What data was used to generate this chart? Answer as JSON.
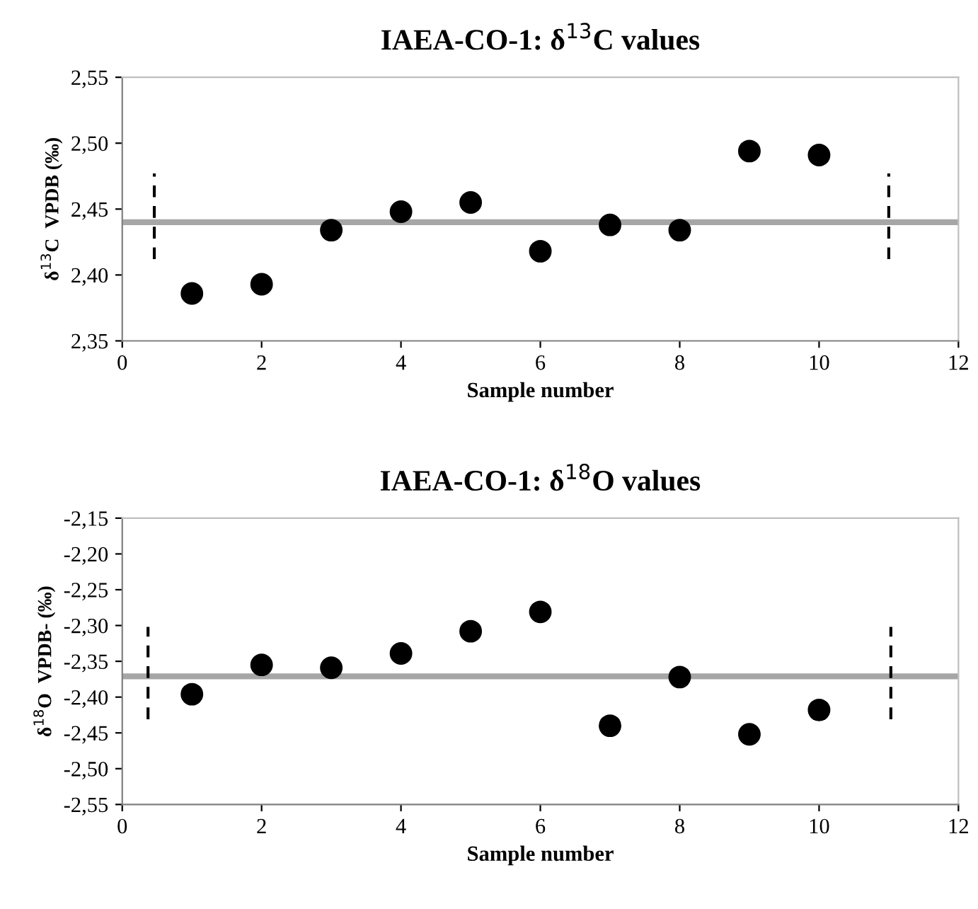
{
  "chart_data": [
    {
      "type": "scatter",
      "title": "IAEA-CO-1: δ$^{13}$C values",
      "xlabel": "Sample number",
      "ylabel": "δ$^{13}$C  VPDB (‰)",
      "marker": "circle",
      "legend": false,
      "grid": false,
      "xlim": [
        0,
        12
      ],
      "xticks": [
        0,
        2,
        4,
        6,
        8,
        10,
        12
      ],
      "ylim": [
        2.35,
        2.55
      ],
      "yticks": [
        {
          "value": 2.35,
          "label": "2,35"
        },
        {
          "value": 2.4,
          "label": "2,40"
        },
        {
          "value": 2.45,
          "label": "2,45"
        },
        {
          "value": 2.5,
          "label": "2,50"
        },
        {
          "value": 2.55,
          "label": "2,55"
        }
      ],
      "ref_lines": [
        {
          "axis": "y",
          "value": 2.44,
          "color": "#a6a6a6"
        }
      ],
      "series": [
        {
          "color": "#000000",
          "x": [
            1,
            2,
            3,
            4,
            5,
            6,
            7,
            8,
            9,
            10
          ],
          "values": [
            2.386,
            2.393,
            2.434,
            2.448,
            2.455,
            2.418,
            2.438,
            2.434,
            2.494,
            2.491
          ]
        },
        {
          "type": "line",
          "color": "#000000",
          "line_style": "dashed",
          "marker": "none",
          "x": [
            0.46,
            0.46
          ],
          "values": [
            2.412,
            2.477
          ]
        },
        {
          "type": "line",
          "color": "#000000",
          "line_style": "dashed",
          "marker": "none",
          "x": [
            11,
            11
          ],
          "values": [
            2.412,
            2.477
          ]
        }
      ]
    },
    {
      "type": "scatter",
      "title": "IAEA-CO-1: δ$^{18}$O values",
      "xlabel": "Sample number",
      "ylabel": "δ$^{18}$O  VPDB- (‰)",
      "marker": "circle",
      "legend": false,
      "grid": false,
      "xlim": [
        0,
        12
      ],
      "xticks": [
        0,
        2,
        4,
        6,
        8,
        10,
        12
      ],
      "ylim": [
        -2.55,
        -2.15
      ],
      "yticks": [
        {
          "value": -2.55,
          "label": "-2,55"
        },
        {
          "value": -2.5,
          "label": "-2,50"
        },
        {
          "value": -2.45,
          "label": "-2,45"
        },
        {
          "value": -2.4,
          "label": "-2,40"
        },
        {
          "value": -2.35,
          "label": "-2,35"
        },
        {
          "value": -2.3,
          "label": "-2,30"
        },
        {
          "value": -2.25,
          "label": "-2,25"
        },
        {
          "value": -2.2,
          "label": "-2,20"
        },
        {
          "value": -2.15,
          "label": "-2,15"
        }
      ],
      "ref_lines": [
        {
          "axis": "y",
          "value": -2.371,
          "color": "#a6a6a6"
        }
      ],
      "series": [
        {
          "color": "#000000",
          "x": [
            1,
            2,
            3,
            4,
            5,
            6,
            7,
            8,
            9,
            10
          ],
          "values": [
            -2.396,
            -2.355,
            -2.359,
            -2.339,
            -2.308,
            -2.281,
            -2.44,
            -2.372,
            -2.452,
            -2.418
          ]
        },
        {
          "type": "line",
          "color": "#000000",
          "line_style": "dashed",
          "marker": "none",
          "x": [
            0.37,
            0.37
          ],
          "values": [
            -2.431,
            -2.302
          ]
        },
        {
          "type": "line",
          "color": "#000000",
          "line_style": "dashed",
          "marker": "none",
          "x": [
            11.03,
            11.03
          ],
          "values": [
            -2.431,
            -2.302
          ]
        }
      ]
    }
  ]
}
